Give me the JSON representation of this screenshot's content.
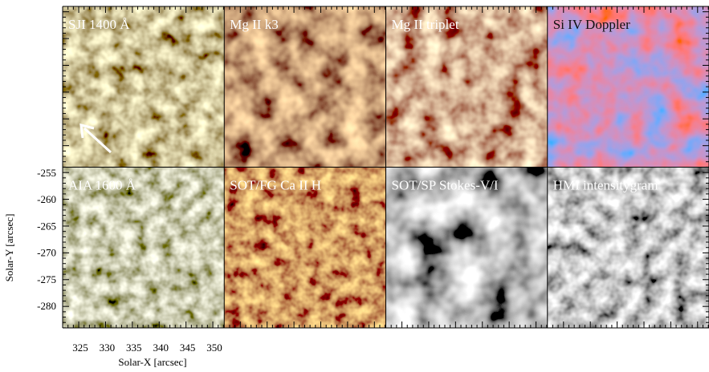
{
  "figure": {
    "panels": [
      "SJI 1400 Å",
      "Mg II k3",
      "Mg II triplet",
      "Si IV Doppler",
      "AIA 1600 Å",
      "SOT/FG Ca II H",
      "SOT/SP Stokes-V/I",
      "HMI intensitygram"
    ],
    "x_label": "Solar-X [arcsec]",
    "y_label": "Solar-Y [arcsec]",
    "x_ticks": [
      "325",
      "330",
      "335",
      "340",
      "345",
      "350"
    ],
    "y_ticks": [
      "-255",
      "-260",
      "-265",
      "-270",
      "-275",
      "-280"
    ]
  }
}
